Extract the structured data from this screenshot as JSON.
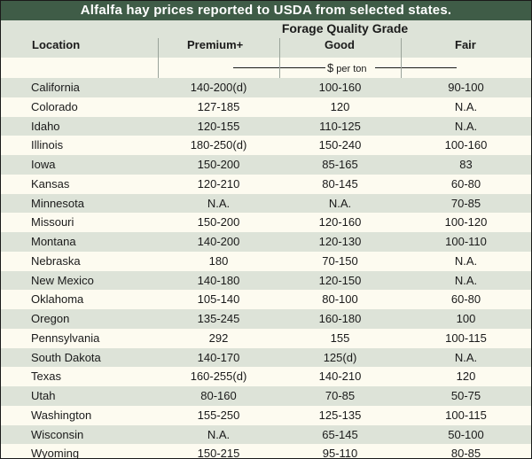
{
  "title": "Alfalfa hay prices reported to USDA from selected states.",
  "header": {
    "location": "Location",
    "group": "Forage Quality Grade",
    "columns": [
      "Premium+",
      "Good",
      "Fair"
    ]
  },
  "units": {
    "symbol": "$",
    "text": "per ton"
  },
  "rows": [
    [
      "California",
      "140-200(d)",
      "100-160",
      "90-100"
    ],
    [
      "Colorado",
      "127-185",
      "120",
      "N.A."
    ],
    [
      "Idaho",
      "120-155",
      "110-125",
      "N.A."
    ],
    [
      "Illinois",
      "180-250(d)",
      "150-240",
      "100-160"
    ],
    [
      "Iowa",
      "150-200",
      "85-165",
      "83"
    ],
    [
      "Kansas",
      "120-210",
      "80-145",
      "60-80"
    ],
    [
      "Minnesota",
      "N.A.",
      "N.A.",
      "70-85"
    ],
    [
      "Missouri",
      "150-200",
      "120-160",
      "100-120"
    ],
    [
      "Montana",
      "140-200",
      "120-130",
      "100-110"
    ],
    [
      "Nebraska",
      "180",
      "70-150",
      "N.A."
    ],
    [
      "New Mexico",
      "140-180",
      "120-150",
      "N.A."
    ],
    [
      "Oklahoma",
      "105-140",
      "80-100",
      "60-80"
    ],
    [
      "Oregon",
      "135-245",
      "160-180",
      "100"
    ],
    [
      "Pennsylvania",
      "292",
      "155",
      "100-115"
    ],
    [
      "South Dakota",
      "140-170",
      "125(d)",
      "N.A."
    ],
    [
      "Texas",
      "160-255(d)",
      "140-210",
      "120"
    ],
    [
      "Utah",
      "80-160",
      "70-85",
      "50-75"
    ],
    [
      "Washington",
      "155-250",
      "125-135",
      "100-115"
    ],
    [
      "Wisconsin",
      "N.A.",
      "65-145",
      "50-100"
    ],
    [
      "Wyoming",
      "150-215",
      "95-110",
      "80-85"
    ]
  ]
}
